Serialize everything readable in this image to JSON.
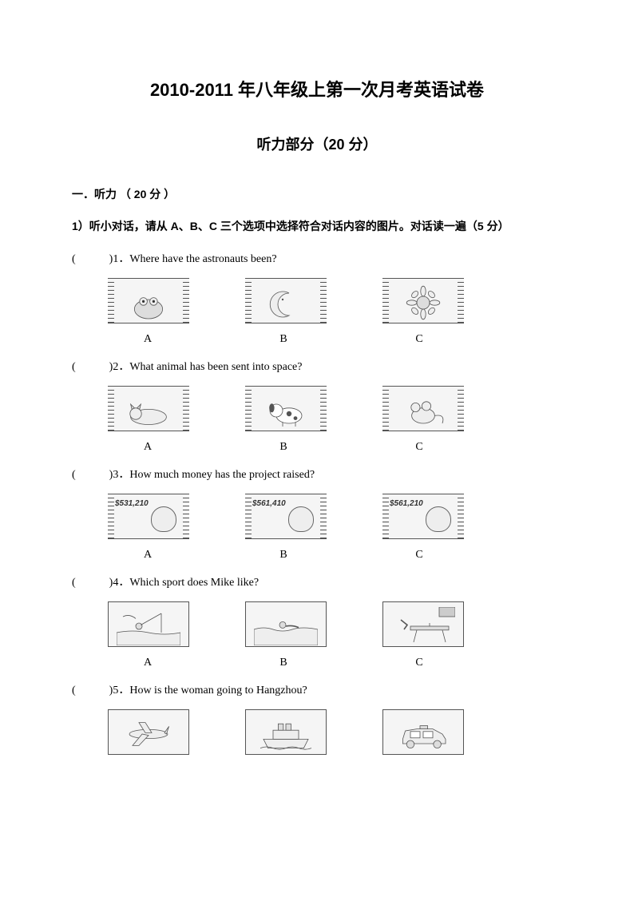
{
  "title": "2010-2011 年八年级上第一次月考英语试卷",
  "subtitle": "听力部分（20 分）",
  "section_header": "一．听力 （ 20 分 ）",
  "instruction": "1）听小对话，请从 A、B、C 三个选项中选择符合对话内容的图片。对话读一遍（5 分）",
  "questions": [
    {
      "num": "1",
      "text": "Where have the astronauts been?",
      "images": [
        "frog-cartoon",
        "moon-cartoon",
        "sunflower-cartoon"
      ],
      "money": null
    },
    {
      "num": "2",
      "text": "What animal has been sent into space?",
      "images": [
        "cat-lying",
        "dog-spotted",
        "mouse-cartoon"
      ],
      "money": null
    },
    {
      "num": "3",
      "text": "How much money has the project raised?",
      "images": [
        "money-bag",
        "money-bag",
        "money-bag"
      ],
      "money": [
        "$531,210",
        "$561,410",
        "$561,210"
      ]
    },
    {
      "num": "4",
      "text": "Which sport does Mike like?",
      "images": [
        "fishing-scene",
        "swimming-scene",
        "table-tennis-scene"
      ],
      "money": null
    },
    {
      "num": "5",
      "text": "How is the woman going to Hangzhou?",
      "images": [
        "airplane",
        "ship",
        "taxi-car"
      ],
      "money": null
    }
  ],
  "option_labels": [
    "A",
    "B",
    "C"
  ],
  "paren_blank": "(　　　)"
}
